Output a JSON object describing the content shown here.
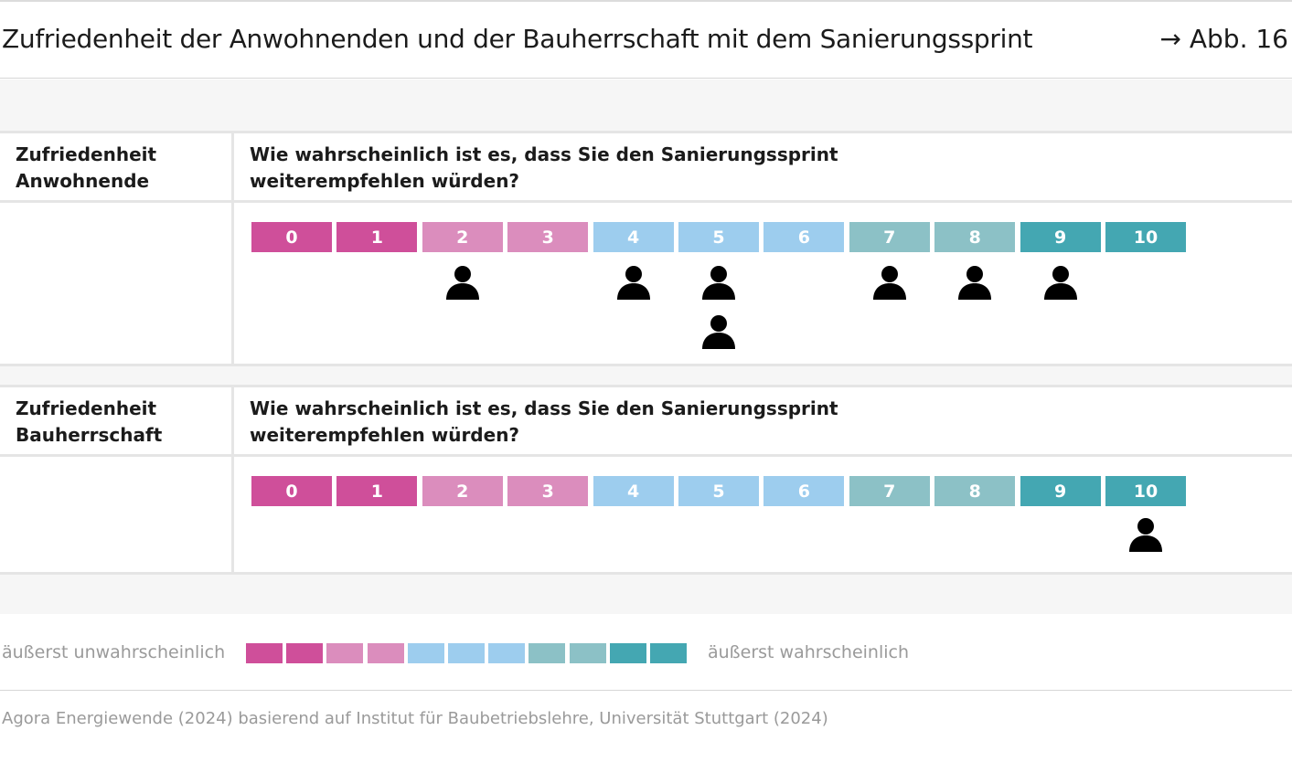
{
  "title": "Zufriedenheit der Anwohnenden und der Bauherrschaft mit dem Sanierungssprint",
  "figure_ref": "→ Abb. 16",
  "colors": {
    "pink_dark": "#cf4f9a",
    "pink_light": "#db8dbd",
    "blue_light": "#9dcdee",
    "teal_light": "#8cc1c6",
    "teal_dark": "#44a7b2",
    "person": "#000000",
    "band": "#f6f6f6"
  },
  "legend": {
    "left_label": "äußerst unwahrscheinlich",
    "right_label": "äußerst wahrscheinlich"
  },
  "source": "Agora Energiewende (2024) basierend auf Institut für Baubetriebslehre, Universität Stuttgart (2024)",
  "chart_data": [
    {
      "type": "scatter",
      "group_label": "Zufriedenheit\nAnwohnende",
      "question": "Wie wahrscheinlich ist es, dass Sie den Sanierungssprint\nweiterempfehlen würden?",
      "scale": [
        "0",
        "1",
        "2",
        "3",
        "4",
        "5",
        "6",
        "7",
        "8",
        "9",
        "10"
      ],
      "scale_colors": [
        "#cf4f9a",
        "#cf4f9a",
        "#db8dbd",
        "#db8dbd",
        "#9dcdee",
        "#9dcdee",
        "#9dcdee",
        "#8cc1c6",
        "#8cc1c6",
        "#44a7b2",
        "#44a7b2"
      ],
      "responses": [
        {
          "score": 2,
          "count": 1
        },
        {
          "score": 4,
          "count": 1
        },
        {
          "score": 5,
          "count": 2
        },
        {
          "score": 7,
          "count": 1
        },
        {
          "score": 8,
          "count": 1
        },
        {
          "score": 9,
          "count": 1
        }
      ]
    },
    {
      "type": "scatter",
      "group_label": "Zufriedenheit\nBauherrschaft",
      "question": "Wie wahrscheinlich ist es, dass Sie den Sanierungssprint\nweiterempfehlen würden?",
      "scale": [
        "0",
        "1",
        "2",
        "3",
        "4",
        "5",
        "6",
        "7",
        "8",
        "9",
        "10"
      ],
      "scale_colors": [
        "#cf4f9a",
        "#cf4f9a",
        "#db8dbd",
        "#db8dbd",
        "#9dcdee",
        "#9dcdee",
        "#9dcdee",
        "#8cc1c6",
        "#8cc1c6",
        "#44a7b2",
        "#44a7b2"
      ],
      "responses": [
        {
          "score": 10,
          "count": 1
        }
      ]
    }
  ]
}
